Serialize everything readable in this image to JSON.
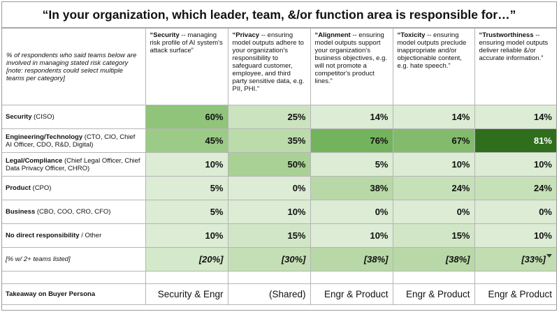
{
  "title": "“In your organization, which leader, team, &/or function area is responsible for…”",
  "header": {
    "description": "% of respondents who said teams below are involved in managing stated risk category [note: respondents could select multiple teams per category]",
    "categories": [
      {
        "name": "“Security",
        "detail": " -- managing risk profile of AI system's attack surface”"
      },
      {
        "name": "“Privacy",
        "detail": " -- ensuring model outputs adhere to your organization's responsibility to safeguard customer, employee, and third party sensitive data, e.g. PII, PHI.”"
      },
      {
        "name": "“Alignment",
        "detail": " -- ensuring model outputs support your organization's business objectives, e.g. will not promote a competitor's product lines.”"
      },
      {
        "name": "“Toxicity",
        "detail": " -- ensuring model outputs preclude inappropriate and/or objectionable content, e.g. hate speech.”"
      },
      {
        "name": "“Trustworthiness",
        "detail": " -- ensuring model outputs deliver reliable &/or accurate information.”"
      }
    ]
  },
  "rows": [
    {
      "name": "Security",
      "detail": " (CISO)",
      "values": [
        "60%",
        "25%",
        "14%",
        "14%",
        "14%"
      ]
    },
    {
      "name": "Engineering/Technology",
      "detail": " (CTO, CIO, Chief AI Officer, CDO, R&D, Digital)",
      "values": [
        "45%",
        "35%",
        "76%",
        "67%",
        "81%"
      ]
    },
    {
      "name": "Legal/Compliance",
      "detail": " (Chief Legal Officer, Chief Data Privacy Officer, CHRO)",
      "values": [
        "10%",
        "50%",
        "5%",
        "10%",
        "10%"
      ]
    },
    {
      "name": "Product",
      "detail": " (CPO)",
      "values": [
        "5%",
        "0%",
        "38%",
        "24%",
        "24%"
      ]
    },
    {
      "name": "Business",
      "detail": " (CBO, COO, CRO, CFO)",
      "values": [
        "5%",
        "10%",
        "0%",
        "0%",
        "0%"
      ]
    },
    {
      "name": "No direct responsibility",
      "detail": " / Other",
      "values": [
        "10%",
        "15%",
        "10%",
        "15%",
        "10%"
      ]
    }
  ],
  "summary": {
    "label": "[% w/ 2+ teams listed]",
    "values": [
      "[20%]",
      "[30%]",
      "[38%]",
      "[38%]",
      "[33%]"
    ]
  },
  "takeaway": {
    "label": "Takeaway on Buyer Persona",
    "values": [
      "Security & Engr",
      "(Shared)",
      "Engr & Product",
      "Engr & Product",
      "Engr & Product"
    ]
  },
  "colors": {
    "c60": "#8fc47a",
    "c25": "#cbe3bf",
    "c14": "#dcecd5",
    "c45": "#9ccb88",
    "c35": "#bcdbab",
    "c76": "#74b35e",
    "c67": "#82bb6c",
    "c81": "#2f6e1d",
    "c10": "#dcecd5",
    "c50": "#a9d196",
    "c5": "#dcecd5",
    "c38": "#b8d9a7",
    "c24": "#c6e1b8",
    "c0": "#dcecd5",
    "c15": "#d1e6c6",
    "c20": "#d4e8ca",
    "c30": "#c4dfb5",
    "c33": "#c1ddb1",
    "row_bg": "#d9ead3"
  }
}
